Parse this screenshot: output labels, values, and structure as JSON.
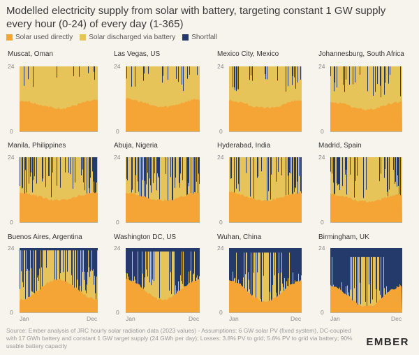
{
  "title": "Modelled electricity supply from solar with battery, targeting constant 1 GW supply every hour (0-24) of every day (1-365)",
  "legend": [
    {
      "label": "Solar used directly",
      "color": "#f4a535"
    },
    {
      "label": "Solar discharged via battery",
      "color": "#e6c45a"
    },
    {
      "label": "Shortfall",
      "color": "#233a6b"
    }
  ],
  "chart_data": {
    "type": "area",
    "y_ticks": [
      "0",
      "24"
    ],
    "x_ticks": [
      "Jan",
      "Dec"
    ],
    "ylim": [
      0,
      24
    ],
    "panels": [
      {
        "city": "Muscat, Oman",
        "direct_hours": 10,
        "shortfall_level": 0.05
      },
      {
        "city": "Las Vegas, US",
        "direct_hours": 10.5,
        "shortfall_level": 0.12
      },
      {
        "city": "Mexico City, Mexico",
        "direct_hours": 10,
        "shortfall_level": 0.15
      },
      {
        "city": "Johannesburg, South Africa",
        "direct_hours": 9.5,
        "shortfall_level": 0.22
      },
      {
        "city": "Manila, Philippines",
        "direct_hours": 9.5,
        "shortfall_level": 0.35
      },
      {
        "city": "Abuja, Nigeria",
        "direct_hours": 9.5,
        "shortfall_level": 0.45
      },
      {
        "city": "Hyderabad, India",
        "direct_hours": 9.5,
        "shortfall_level": 0.4
      },
      {
        "city": "Madrid, Spain",
        "direct_hours": 9,
        "shortfall_level": 0.35
      },
      {
        "city": "Buenos Aires, Argentina",
        "direct_hours": 8.5,
        "shortfall_level": 0.55
      },
      {
        "city": "Washington DC, US",
        "direct_hours": 8.5,
        "shortfall_level": 0.6
      },
      {
        "city": "Wuhan, China",
        "direct_hours": 8,
        "shortfall_level": 0.65
      },
      {
        "city": "Birmingham, UK",
        "direct_hours": 6,
        "shortfall_level": 0.85
      }
    ]
  },
  "source": "Source: Ember analysis of JRC hourly solar radiation data (2023 values) - Assumptions: 6 GW solar PV (fixed system), DC-coupled with 17 GWh battery and constant 1 GW target supply (24 GWh per day); Losses: 3.8% PV to grid; 5.6% PV to grid via battery; 90% usable battery capacity",
  "logo": "EMBER"
}
